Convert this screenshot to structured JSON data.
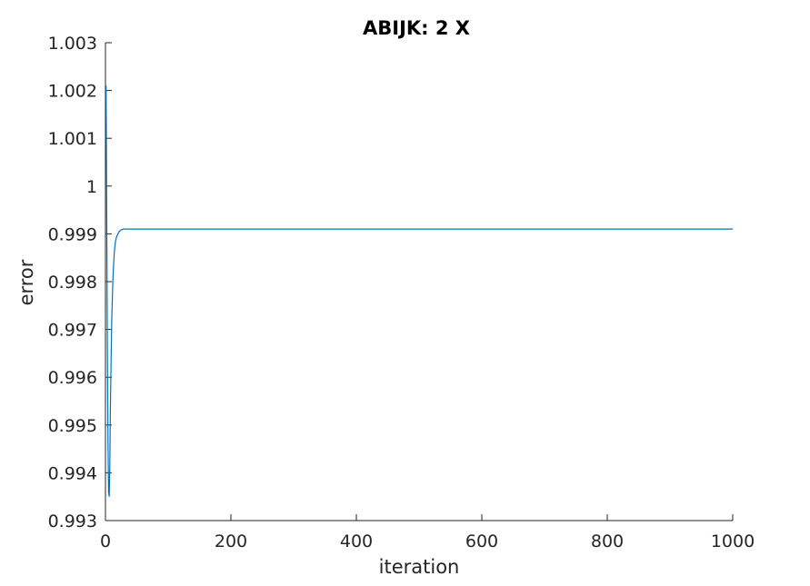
{
  "chart_data": {
    "type": "line",
    "title": "ABIJK: 2 X",
    "xlabel": "iteration",
    "ylabel": "error",
    "xlim": [
      0,
      1000
    ],
    "ylim": [
      0.993,
      1.003
    ],
    "xticks": [
      0,
      200,
      400,
      600,
      800,
      1000
    ],
    "xtick_labels": [
      "0",
      "200",
      "400",
      "600",
      "800",
      "1000"
    ],
    "yticks": [
      0.993,
      0.994,
      0.995,
      0.996,
      0.997,
      0.998,
      0.999,
      1.0,
      1.001,
      1.002,
      1.003
    ],
    "ytick_labels": [
      "0.993",
      "0.994",
      "0.995",
      "0.996",
      "0.997",
      "0.998",
      "0.999",
      "1",
      "1.001",
      "1.002",
      "1.003"
    ],
    "grid": false,
    "line_color": "#0072BD",
    "axis_color": "#262626",
    "series": [
      {
        "x": [
          1,
          2,
          3,
          4,
          5,
          6,
          7,
          8,
          10,
          12,
          14,
          16,
          18,
          20,
          22,
          25,
          28,
          32,
          36,
          40,
          50,
          60,
          80,
          100,
          150,
          200,
          300,
          400,
          500,
          600,
          700,
          800,
          900,
          1000
        ],
        "y": [
          1.0021,
          0.9995,
          0.9968,
          0.9947,
          0.9936,
          0.9935,
          0.9942,
          0.9955,
          0.9972,
          0.9981,
          0.9986,
          0.99885,
          0.99895,
          0.999,
          0.99905,
          0.99908,
          0.9991,
          0.9991,
          0.9991,
          0.9991,
          0.9991,
          0.9991,
          0.9991,
          0.9991,
          0.9991,
          0.9991,
          0.9991,
          0.9991,
          0.9991,
          0.9991,
          0.9991,
          0.9991,
          0.9991,
          0.9991
        ]
      }
    ]
  }
}
